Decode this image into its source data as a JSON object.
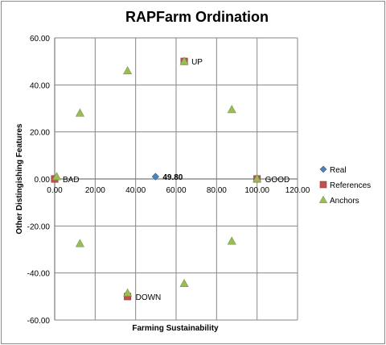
{
  "chart_data": {
    "type": "scatter",
    "title": "RAPFarm Ordination",
    "xlabel": "Farming Sustainability",
    "ylabel": "Other Distingishing Features",
    "xlim": [
      0,
      120
    ],
    "ylim": [
      -60,
      60
    ],
    "x_ticks": [
      "0.00",
      "20.00",
      "40.00",
      "60.00",
      "80.00",
      "100.00",
      "120.00"
    ],
    "y_ticks": [
      "60.00",
      "40.00",
      "20.00",
      "0.00",
      "-20.00",
      "-40.00",
      "-60.00"
    ],
    "grid": true,
    "legend_position": "right",
    "series": [
      {
        "name": "Real",
        "marker": "diamond",
        "color": "#4f81bd",
        "points": [
          {
            "x": 49.8,
            "y": 1.0
          }
        ]
      },
      {
        "name": "References",
        "marker": "square",
        "color": "#c0504d",
        "points": [
          {
            "x": 0,
            "y": 0
          },
          {
            "x": 100,
            "y": 0
          },
          {
            "x": 64,
            "y": 50
          },
          {
            "x": 36,
            "y": -50
          }
        ]
      },
      {
        "name": "Anchors",
        "marker": "triangle",
        "color": "#9bbb59",
        "points": [
          {
            "x": 1,
            "y": 1
          },
          {
            "x": 12.5,
            "y": 28
          },
          {
            "x": 36,
            "y": 46
          },
          {
            "x": 64,
            "y": 50
          },
          {
            "x": 87.5,
            "y": 29.5
          },
          {
            "x": 100,
            "y": 0
          },
          {
            "x": 87.5,
            "y": -26.5
          },
          {
            "x": 64,
            "y": -44.5
          },
          {
            "x": 36,
            "y": -48.5
          },
          {
            "x": 12.5,
            "y": -27.5
          }
        ]
      }
    ],
    "annotations": [
      {
        "text": "BAD",
        "x": 0,
        "y": 0,
        "bold": false
      },
      {
        "text": "GOOD",
        "x": 100,
        "y": 0,
        "bold": false
      },
      {
        "text": "UP",
        "x": 64,
        "y": 50,
        "bold": false
      },
      {
        "text": "DOWN",
        "x": 36,
        "y": -50,
        "bold": false
      },
      {
        "text": "49.80",
        "x": 49.8,
        "y": 1.0,
        "bold": true
      }
    ]
  }
}
